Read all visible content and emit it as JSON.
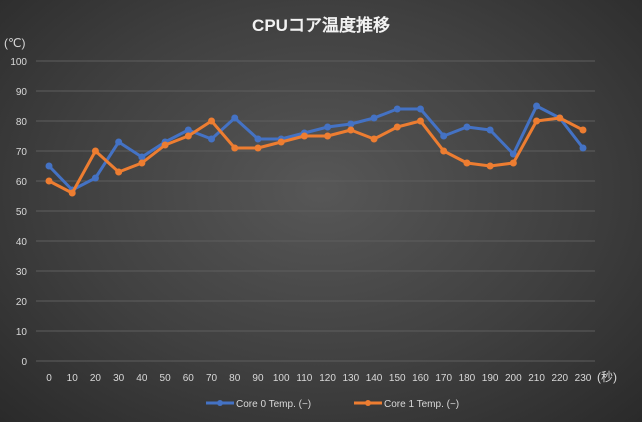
{
  "chart_data": {
    "type": "line",
    "title": "CPUコア温度推移",
    "ylabel": "(℃)",
    "xlabel": "(秒)",
    "ylim": [
      0,
      100
    ],
    "yticks": [
      0,
      10,
      20,
      30,
      40,
      50,
      60,
      70,
      80,
      90,
      100
    ],
    "x": [
      0,
      10,
      20,
      30,
      40,
      50,
      60,
      70,
      80,
      90,
      100,
      110,
      120,
      130,
      140,
      150,
      160,
      170,
      180,
      190,
      200,
      210,
      220,
      230
    ],
    "grid": true,
    "legend_position": "bottom",
    "series": [
      {
        "name": "Core 0 Temp. (−)",
        "color": "#4472c4",
        "values": [
          65,
          57,
          61,
          73,
          68,
          73,
          77,
          74,
          81,
          74,
          74,
          76,
          78,
          79,
          81,
          84,
          84,
          75,
          78,
          77,
          69,
          85,
          81,
          71
        ]
      },
      {
        "name": "Core 1 Temp. (−)",
        "color": "#ed7d31",
        "values": [
          60,
          56,
          70,
          63,
          66,
          72,
          75,
          80,
          71,
          71,
          73,
          75,
          75,
          77,
          74,
          78,
          80,
          70,
          66,
          65,
          66,
          80,
          81,
          77
        ]
      }
    ]
  }
}
